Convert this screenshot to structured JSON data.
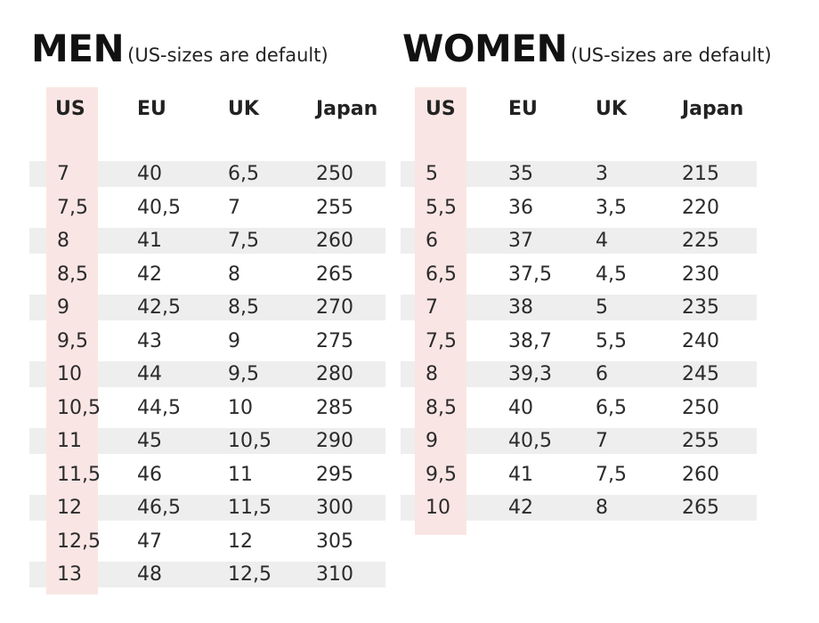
{
  "men": {
    "title": "MEN",
    "subtitle": "(US-sizes are default)",
    "headers": [
      "US",
      "EU",
      "UK",
      "Japan"
    ],
    "rows": [
      [
        "7",
        "40",
        "6,5",
        "250"
      ],
      [
        "7,5",
        "40,5",
        "7",
        "255"
      ],
      [
        "8",
        "41",
        "7,5",
        "260"
      ],
      [
        "8,5",
        "42",
        "8",
        "265"
      ],
      [
        "9",
        "42,5",
        "8,5",
        "270"
      ],
      [
        "9,5",
        "43",
        "9",
        "275"
      ],
      [
        "10",
        "44",
        "9,5",
        "280"
      ],
      [
        "10,5",
        "44,5",
        "10",
        "285"
      ],
      [
        "11",
        "45",
        "10,5",
        "290"
      ],
      [
        "11,5",
        "46",
        "11",
        "295"
      ],
      [
        "12",
        "46,5",
        "11,5",
        "300"
      ],
      [
        "12,5",
        "47",
        "12",
        "305"
      ],
      [
        "13",
        "48",
        "12,5",
        "310"
      ]
    ]
  },
  "women": {
    "title": "WOMEN",
    "subtitle": "(US-sizes are default)",
    "headers": [
      "US",
      "EU",
      "UK",
      "Japan"
    ],
    "rows": [
      [
        "5",
        "35",
        "3",
        "215"
      ],
      [
        "5,5",
        "36",
        "3,5",
        "220"
      ],
      [
        "6",
        "37",
        "4",
        "225"
      ],
      [
        "6,5",
        "37,5",
        "4,5",
        "230"
      ],
      [
        "7",
        "38",
        "5",
        "235"
      ],
      [
        "7,5",
        "38,7",
        "5,5",
        "240"
      ],
      [
        "8",
        "39,3",
        "6",
        "245"
      ],
      [
        "8,5",
        "40",
        "6,5",
        "250"
      ],
      [
        "9",
        "40,5",
        "7",
        "255"
      ],
      [
        "9,5",
        "41",
        "7,5",
        "260"
      ],
      [
        "10",
        "42",
        "8",
        "265"
      ]
    ]
  },
  "colors": {
    "us_highlight": "#f9e6e4",
    "row_stripe": "#eeeeee",
    "text": "#2b2b2b"
  }
}
